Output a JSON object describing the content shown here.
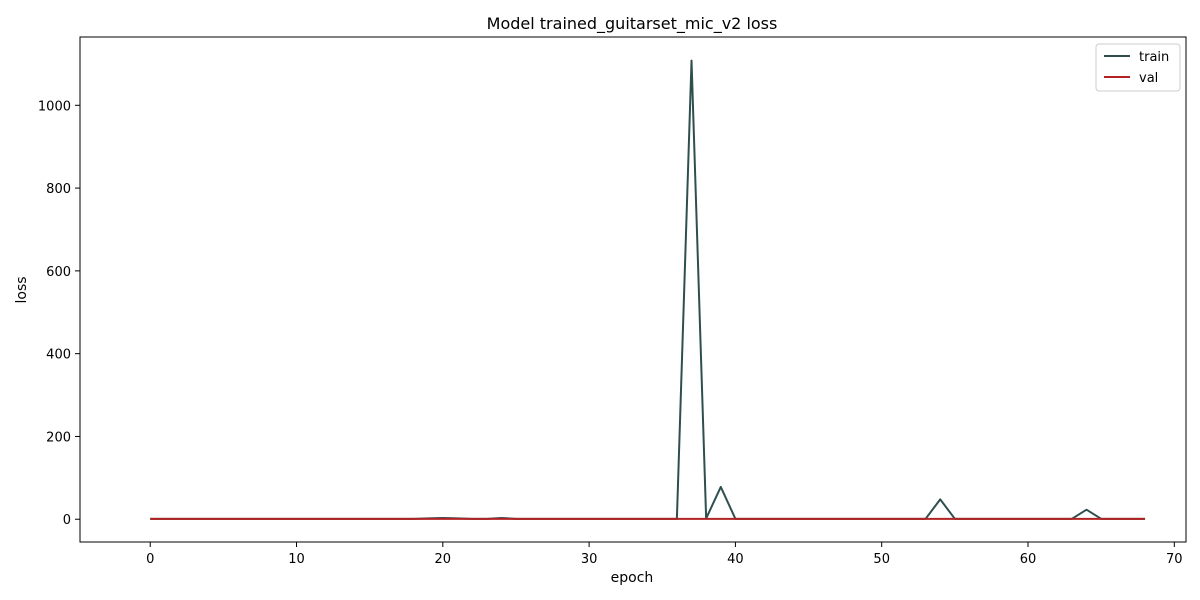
{
  "chart_data": {
    "type": "line",
    "title": "Model trained_guitarset_mic_v2 loss",
    "xlabel": "epoch",
    "ylabel": "loss",
    "xlim": [
      -4.8,
      70.8
    ],
    "ylim": [
      -55,
      1165
    ],
    "xticks": [
      0,
      10,
      20,
      30,
      40,
      50,
      60,
      70
    ],
    "yticks": [
      0,
      200,
      400,
      600,
      800,
      1000
    ],
    "grid": false,
    "legend_position": "top-right",
    "series": [
      {
        "name": "train",
        "color": "#2f4f4f",
        "x": [
          0,
          1,
          2,
          3,
          4,
          5,
          6,
          7,
          8,
          9,
          10,
          11,
          12,
          13,
          14,
          15,
          16,
          17,
          18,
          19,
          20,
          21,
          22,
          23,
          24,
          25,
          26,
          27,
          28,
          29,
          30,
          31,
          32,
          33,
          34,
          35,
          36,
          37,
          38,
          39,
          40,
          41,
          42,
          43,
          44,
          45,
          46,
          47,
          48,
          49,
          50,
          51,
          52,
          53,
          54,
          55,
          56,
          57,
          58,
          59,
          60,
          61,
          62,
          63,
          64,
          65,
          66,
          67,
          68
        ],
        "values": [
          1,
          1,
          1,
          1,
          1,
          1,
          1,
          1,
          1,
          1,
          1,
          1,
          1,
          1,
          1,
          1,
          1,
          1,
          1,
          2,
          3,
          2,
          1,
          1,
          3,
          1,
          1,
          1,
          1,
          1,
          1,
          1,
          1,
          1,
          1,
          1,
          1,
          1108,
          2,
          78,
          1,
          1,
          1,
          1,
          1,
          1,
          1,
          1,
          1,
          1,
          1,
          1,
          1,
          1,
          48,
          1,
          1,
          1,
          1,
          1,
          1,
          1,
          1,
          1,
          23,
          1,
          1,
          1,
          1
        ]
      },
      {
        "name": "val",
        "color": "#b22222",
        "x": [
          0,
          1,
          2,
          3,
          4,
          5,
          6,
          7,
          8,
          9,
          10,
          11,
          12,
          13,
          14,
          15,
          16,
          17,
          18,
          19,
          20,
          21,
          22,
          23,
          24,
          25,
          26,
          27,
          28,
          29,
          30,
          31,
          32,
          33,
          34,
          35,
          36,
          37,
          38,
          39,
          40,
          41,
          42,
          43,
          44,
          45,
          46,
          47,
          48,
          49,
          50,
          51,
          52,
          53,
          54,
          55,
          56,
          57,
          58,
          59,
          60,
          61,
          62,
          63,
          64,
          65,
          66,
          67,
          68
        ],
        "values": [
          1,
          1,
          1,
          1,
          1,
          1,
          1,
          1,
          1,
          1,
          1,
          1,
          1,
          1,
          1,
          1,
          1,
          1,
          1,
          1,
          1,
          1,
          1,
          1,
          1,
          1,
          1,
          1,
          1,
          1,
          1,
          1,
          1,
          1,
          1,
          1,
          1,
          1,
          1,
          1,
          1,
          1,
          1,
          1,
          1,
          1,
          1,
          1,
          1,
          1,
          1,
          1,
          1,
          1,
          1,
          1,
          1,
          1,
          1,
          1,
          1,
          1,
          1,
          1,
          1,
          1,
          1,
          1,
          1
        ]
      }
    ]
  }
}
